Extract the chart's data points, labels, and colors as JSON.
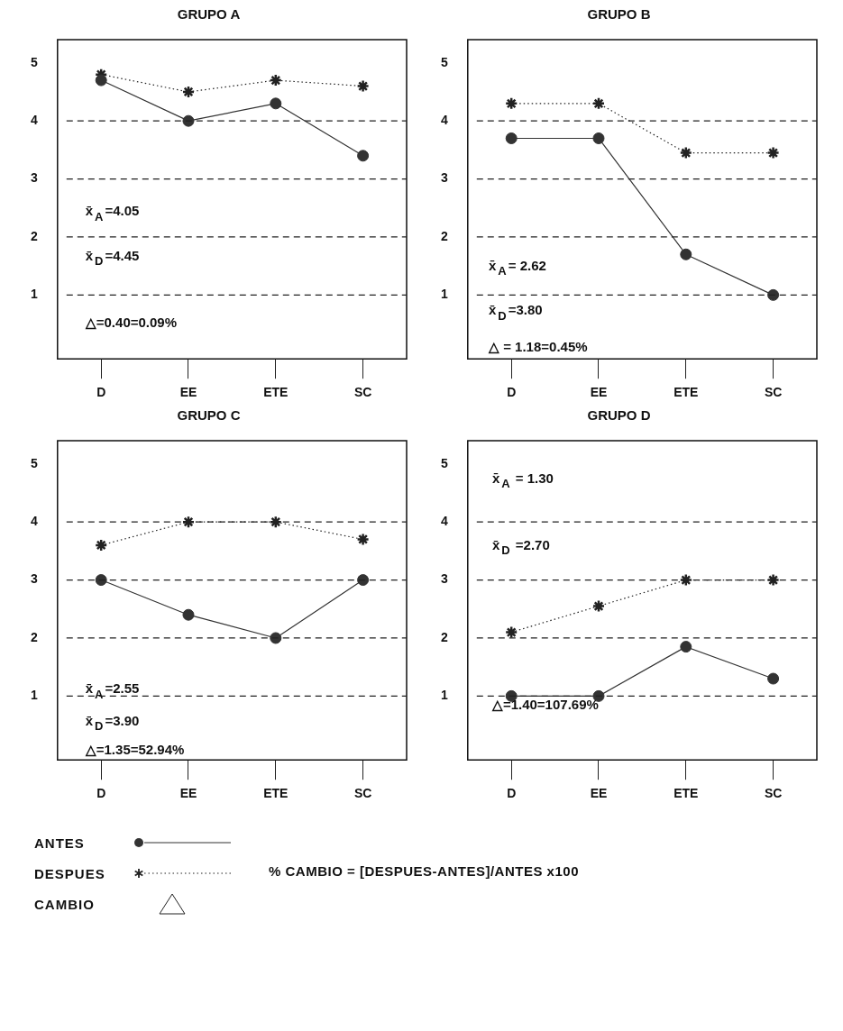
{
  "chart_data": [
    {
      "type": "line",
      "title": "GRUPO A",
      "categories": [
        "D",
        "EE",
        "ETE",
        "SC"
      ],
      "ylim": [
        -0.1,
        5.4
      ],
      "yticks": [
        1,
        2,
        3,
        4,
        5
      ],
      "series": [
        {
          "name": "ANTES",
          "color": "#333333",
          "values": [
            4.7,
            4.0,
            4.3,
            3.4
          ],
          "marker": "circle",
          "line_style": "solid"
        },
        {
          "name": "DESPUES",
          "color": "#222222",
          "values": [
            4.8,
            4.5,
            4.7,
            4.6
          ],
          "marker": "cross",
          "line_style": "dotted"
        }
      ],
      "ref_lines": [
        {
          "axis": "y",
          "value": 1,
          "line_style": "dashed"
        },
        {
          "axis": "y",
          "value": 2,
          "line_style": "dashed"
        },
        {
          "axis": "y",
          "value": 3,
          "line_style": "dashed"
        },
        {
          "axis": "y",
          "value": 4,
          "line_style": "dashed"
        }
      ],
      "annotations": [
        "x̄$_{A}$=4.05",
        "x̄$_{D}$=4.45",
        "△=0.40=0.09%"
      ]
    },
    {
      "type": "line",
      "title": "GRUPO B",
      "categories": [
        "D",
        "EE",
        "ETE",
        "SC"
      ],
      "ylim": [
        -0.1,
        5.4
      ],
      "yticks": [
        1,
        2,
        3,
        4,
        5
      ],
      "series": [
        {
          "color": "#333333",
          "values": [
            3.7,
            3.7,
            1.7,
            1.0
          ],
          "marker": "circle",
          "line_style": "solid"
        },
        {
          "color": "#222222",
          "values": [
            4.3,
            4.3,
            3.45,
            3.45
          ],
          "marker": "cross",
          "line_style": "dotted"
        }
      ],
      "ref_lines": [
        {
          "axis": "y",
          "value": 1,
          "line_style": "dashed"
        },
        {
          "axis": "y",
          "value": 2,
          "line_style": "dashed"
        },
        {
          "axis": "y",
          "value": 3,
          "line_style": "dashed"
        },
        {
          "axis": "y",
          "value": 4,
          "line_style": "dashed"
        }
      ],
      "annotations": [
        "x̄$_{A}$= 2.62",
        "x̄$_{D}$=3.80",
        "△ = 1.18=0.45%"
      ]
    },
    {
      "type": "line",
      "title": "GRUPO C",
      "categories": [
        "D",
        "EE",
        "ETE",
        "SC"
      ],
      "ylim": [
        -0.1,
        5.4
      ],
      "yticks": [
        1,
        2,
        3,
        4,
        5
      ],
      "series": [
        {
          "color": "#333333",
          "values": [
            3.0,
            2.4,
            2.0,
            3.0
          ],
          "marker": "circle",
          "line_style": "solid"
        },
        {
          "color": "#222222",
          "values": [
            3.6,
            4.0,
            4.0,
            3.7
          ],
          "marker": "cross",
          "line_style": "dotted"
        }
      ],
      "ref_lines": [
        {
          "axis": "y",
          "value": 1,
          "line_style": "dashed"
        },
        {
          "axis": "y",
          "value": 2,
          "line_style": "dashed"
        },
        {
          "axis": "y",
          "value": 3,
          "line_style": "dashed"
        },
        {
          "axis": "y",
          "value": 4,
          "line_style": "dashed"
        }
      ],
      "annotations": [
        "x̄$_{A}$=2.55",
        "x̄$_{D}$=3.90",
        "△=1.35=52.94%"
      ]
    },
    {
      "type": "line",
      "title": "GRUPO D",
      "categories": [
        "D",
        "EE",
        "ETE",
        "SC"
      ],
      "ylim": [
        -0.1,
        5.4
      ],
      "yticks": [
        1,
        2,
        3,
        4,
        5
      ],
      "series": [
        {
          "color": "#333333",
          "values": [
            1.0,
            1.0,
            1.85,
            1.3
          ],
          "marker": "circle",
          "line_style": "solid"
        },
        {
          "color": "#222222",
          "values": [
            2.1,
            2.55,
            3.0,
            3.0
          ],
          "marker": "cross",
          "line_style": "dotted"
        }
      ],
      "ref_lines": [
        {
          "axis": "y",
          "value": 1,
          "line_style": "dashed"
        },
        {
          "axis": "y",
          "value": 2,
          "line_style": "dashed"
        },
        {
          "axis": "y",
          "value": 3,
          "line_style": "dashed"
        },
        {
          "axis": "y",
          "value": 4,
          "line_style": "dashed"
        }
      ],
      "annotations": [
        "x̄$_{A}$ = 1.30",
        "x̄$_{D}$ =2.70",
        "△=1.40=107.69%"
      ]
    },
    {
      "type": "other",
      "annotations": [
        "CAMBIO",
        "% CAMBIO = [DESPUES-ANTES]/ANTES x100"
      ]
    }
  ]
}
